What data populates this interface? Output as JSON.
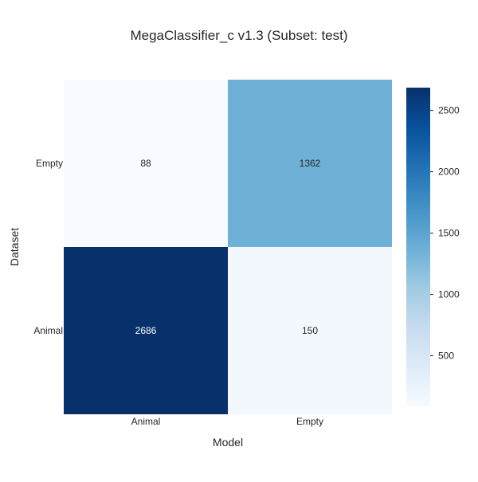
{
  "chart_data": {
    "type": "heatmap",
    "title": "MegaClassifier_c v1.3 (Subset: test)",
    "xlabel": "Model",
    "ylabel": "Dataset",
    "x_categories": [
      "Animal",
      "Empty"
    ],
    "y_categories": [
      "Empty",
      "Animal"
    ],
    "values": [
      [
        88,
        1362
      ],
      [
        2686,
        150
      ]
    ],
    "colorbar": {
      "vmin": 88,
      "vmax": 2686,
      "ticks": [
        500,
        1000,
        1500,
        2000,
        2500
      ],
      "colormap": "Blues",
      "colors": [
        "#f7fbff",
        "#deebf7",
        "#c6dbef",
        "#9ecae1",
        "#6baed6",
        "#4292c6",
        "#2171b5",
        "#08519c",
        "#08306b"
      ]
    },
    "grid": false
  }
}
